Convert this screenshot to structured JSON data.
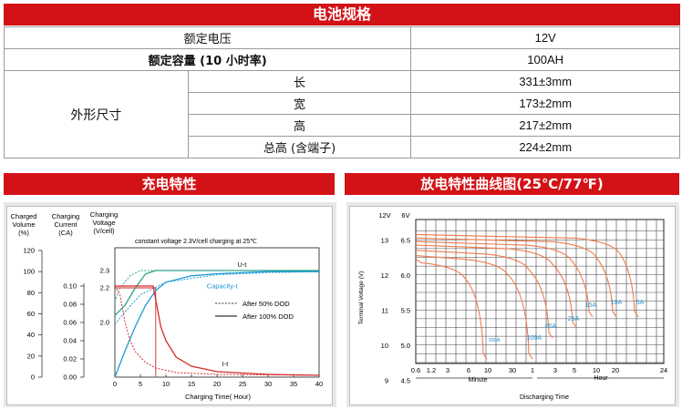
{
  "title": "电池规格",
  "specs": {
    "rated_voltage": {
      "label": "额定电压",
      "value": "12V"
    },
    "rated_capacity": {
      "label": "额定容量 (10 小时率)",
      "value": "100AH"
    },
    "dimensions": {
      "label": "外形尺寸",
      "rows": [
        {
          "label": "长",
          "value": "331±3mm"
        },
        {
          "label": "宽",
          "value": "173±2mm"
        },
        {
          "label": "高",
          "value": "217±2mm"
        },
        {
          "label": "总高 (含端子)",
          "value": "224±2mm"
        }
      ]
    }
  },
  "charge_section": {
    "title": "充电特性"
  },
  "discharge_section": {
    "title": "放电特性曲线图(25℃/77℉)"
  },
  "charge_chart": {
    "axis_headers": {
      "volume": [
        "Charged",
        "Volume",
        "(%)"
      ],
      "current": [
        "Charging",
        "Current",
        "(CA)"
      ],
      "voltage": [
        "Charging",
        "Voltage",
        "(V/cell)"
      ]
    },
    "volume_ticks": [
      "120",
      "100",
      "80",
      "60",
      "40",
      "20",
      "0"
    ],
    "current_ticks": [
      "0.10",
      "0.08",
      "0.06",
      "0.04",
      "0.02",
      "0.00"
    ],
    "voltage_ticks": [
      "2.3",
      "2.2",
      "2.0"
    ],
    "x_ticks": [
      "0",
      "5",
      "10",
      "15",
      "20",
      "25",
      "30",
      "35",
      "40"
    ],
    "xlabel": "Charging Time( Hour)",
    "note": "constant voltage 2.3V/cell charging at 25℃",
    "labels": {
      "ut": "U-t",
      "capacity": "Capacity-t",
      "it": "I-t"
    },
    "legend": {
      "dashed": "After 50% DOD",
      "solid": "After 100% DOD"
    },
    "colors": {
      "voltage": "#2ca48a",
      "capacity": "#1f9ad6",
      "current": "#d42a2a"
    }
  },
  "discharge_chart": {
    "ylabel": "Terminal Voltage (V)",
    "header_12v": "12V",
    "header_6v": "6V",
    "ticks_12v": [
      "13",
      "12",
      "11",
      "10",
      "9"
    ],
    "ticks_6v": [
      "6.5",
      "6.0",
      "5.5",
      "5.0",
      "4.5"
    ],
    "x_ticks": [
      "0.6",
      "1.2",
      "3",
      "6",
      "10",
      "30",
      "1",
      "3",
      "5",
      "10",
      "20",
      "24"
    ],
    "minute_label": "Minute",
    "hour_label": "Hour",
    "xlabel": "Discharging Time",
    "curve_labels": [
      "300A",
      "100A",
      "60A",
      "25A",
      "15A",
      "10A",
      "5A"
    ],
    "colors": {
      "curves": "#f07a4c",
      "labels": "#1f9ad6"
    }
  },
  "chart_data": [
    {
      "type": "line",
      "xlabel": "Charging Time( Hour)",
      "xlim": [
        0,
        40
      ],
      "series": [
        {
          "name": "U-t",
          "x": [
            0,
            2,
            4,
            6,
            8,
            10,
            15,
            20,
            30,
            40
          ],
          "y": [
            2.04,
            2.1,
            2.2,
            2.28,
            2.3,
            2.3,
            2.3,
            2.3,
            2.3,
            2.3
          ]
        },
        {
          "name": "Capacity-t",
          "x": [
            0,
            2,
            4,
            6,
            8,
            10,
            15,
            20,
            30,
            40
          ],
          "y": [
            0,
            25,
            48,
            68,
            82,
            90,
            96,
            98,
            100,
            100
          ]
        },
        {
          "name": "I-t",
          "x": [
            0,
            7,
            8,
            10,
            15,
            20,
            30,
            40
          ],
          "y": [
            0.1,
            0.1,
            0.07,
            0.035,
            0.01,
            0.005,
            0.002,
            0.001
          ]
        }
      ]
    },
    {
      "type": "line",
      "xlabel": "Discharging Time",
      "ylabel": "Terminal Voltage (V)",
      "series": [
        {
          "name": "300A",
          "end_voltage": 9.6
        },
        {
          "name": "100A",
          "end_voltage": 9.6
        },
        {
          "name": "60A",
          "end_voltage": 10.2
        },
        {
          "name": "25A",
          "end_voltage": 10.5
        },
        {
          "name": "15A",
          "end_voltage": 10.8
        },
        {
          "name": "10A",
          "end_voltage": 10.8
        },
        {
          "name": "5A",
          "end_voltage": 10.8
        }
      ]
    }
  ]
}
